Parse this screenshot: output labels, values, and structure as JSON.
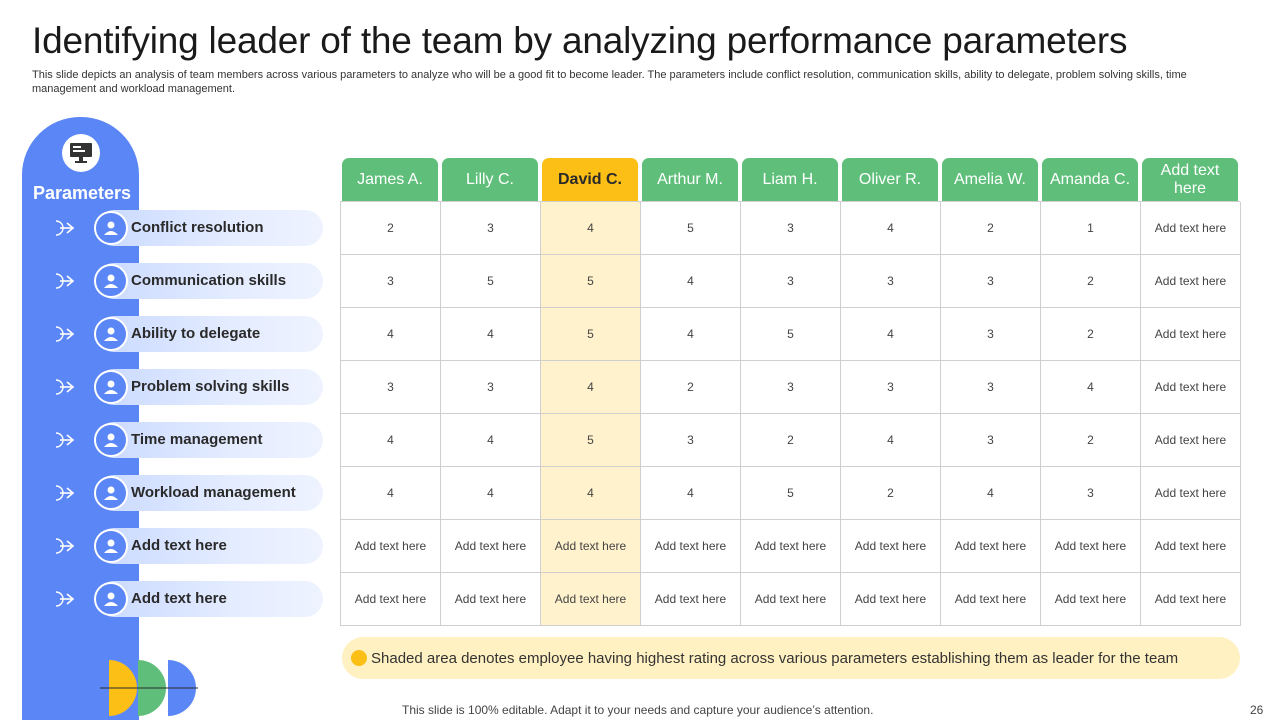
{
  "title": "Identifying leader of the team by analyzing performance parameters",
  "subtitle": "This slide depicts an analysis of team members across various parameters to analyze who will be a good fit to become leader. The parameters include conflict resolution, communication skills, ability to delegate, problem solving skills, time management and workload management.",
  "sidebar": {
    "title": "Parameters",
    "icon": "monitor-presentation-icon",
    "accent": "#5b86f6",
    "items": [
      {
        "label": "Conflict resolution",
        "icon": "people-handshake-icon"
      },
      {
        "label": "Communication skills",
        "icon": "team-discussion-icon"
      },
      {
        "label": "Ability to delegate",
        "icon": "person-gear-icon"
      },
      {
        "label": "Problem solving skills",
        "icon": "puzzle-person-icon"
      },
      {
        "label": "Time management",
        "icon": "clock-hand-icon"
      },
      {
        "label": "Workload management",
        "icon": "person-clock-icon"
      },
      {
        "label": "Add text here",
        "icon": "growth-chart-icon"
      },
      {
        "label": "Add text here",
        "icon": "bar-chart-icon"
      }
    ]
  },
  "table": {
    "header_color": "#5fbf7a",
    "highlight_color": "#fbbf16",
    "highlight_fill": "#fff2cc",
    "highlight_col": 2,
    "columns": [
      "James A.",
      "Lilly C.",
      "David C.",
      "Arthur M.",
      "Liam H.",
      "Oliver R.",
      "Amelia W.",
      "Amanda C.",
      "Add text here"
    ],
    "rows": [
      [
        "2",
        "3",
        "4",
        "5",
        "3",
        "4",
        "2",
        "1",
        "Add text here"
      ],
      [
        "3",
        "5",
        "5",
        "4",
        "3",
        "3",
        "3",
        "2",
        "Add text here"
      ],
      [
        "4",
        "4",
        "5",
        "4",
        "5",
        "4",
        "3",
        "2",
        "Add text here"
      ],
      [
        "3",
        "3",
        "4",
        "2",
        "3",
        "3",
        "3",
        "4",
        "Add text here"
      ],
      [
        "4",
        "4",
        "5",
        "3",
        "2",
        "4",
        "3",
        "2",
        "Add text here"
      ],
      [
        "4",
        "4",
        "4",
        "4",
        "5",
        "2",
        "4",
        "3",
        "Add text here"
      ],
      [
        "Add text here",
        "Add text here",
        "Add text here",
        "Add text here",
        "Add text here",
        "Add text here",
        "Add text here",
        "Add text here",
        "Add text here"
      ],
      [
        "Add text here",
        "Add text here",
        "Add text here",
        "Add text here",
        "Add text here",
        "Add text here",
        "Add text here",
        "Add text here",
        "Add text here"
      ]
    ]
  },
  "note": "Shaded area denotes employee having highest rating across various parameters establishing them as leader for the team",
  "footer": "This slide is 100% editable. Adapt it to your needs and capture your audience’s attention.",
  "page_number": "26"
}
